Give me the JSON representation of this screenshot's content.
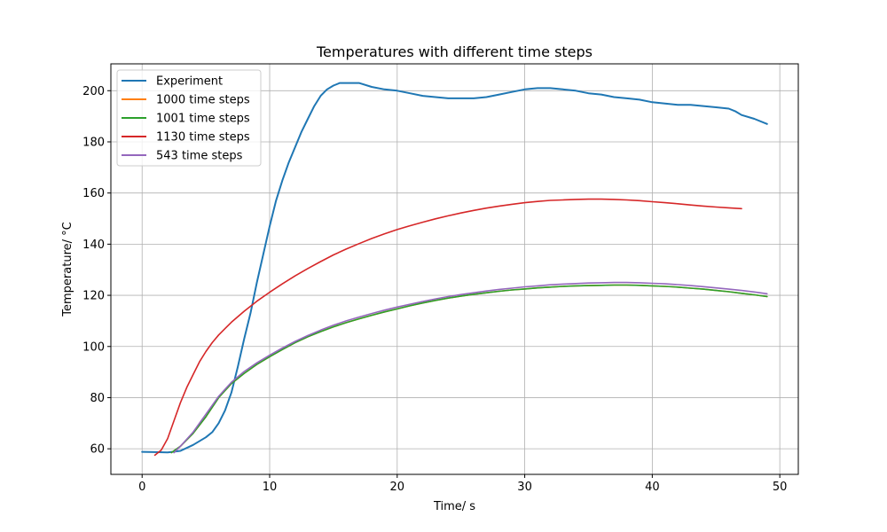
{
  "chart_data": {
    "type": "line",
    "title": "Temperatures with different time steps",
    "xlabel": "Time/ s",
    "ylabel": "Temperature/ °C",
    "xlim": [
      -2.45,
      51.45
    ],
    "ylim": [
      50,
      210.5
    ],
    "xticks": [
      0,
      10,
      20,
      30,
      40,
      50
    ],
    "yticks": [
      60,
      80,
      100,
      120,
      140,
      160,
      180,
      200
    ],
    "grid": true,
    "legend_position": "top-left",
    "series": [
      {
        "name": "Experiment",
        "color": "#1f77b4",
        "points": [
          [
            0,
            58.8
          ],
          [
            1,
            58.7
          ],
          [
            2,
            58.6
          ],
          [
            3,
            59.2
          ],
          [
            4,
            61.5
          ],
          [
            5,
            64.5
          ],
          [
            5.5,
            66.5
          ],
          [
            6,
            70
          ],
          [
            6.5,
            75
          ],
          [
            7,
            82
          ],
          [
            7.5,
            92
          ],
          [
            8,
            103
          ],
          [
            8.5,
            113
          ],
          [
            9,
            125
          ],
          [
            9.5,
            136
          ],
          [
            10,
            147
          ],
          [
            10.5,
            157
          ],
          [
            11,
            165
          ],
          [
            11.5,
            172
          ],
          [
            12,
            178
          ],
          [
            12.5,
            184
          ],
          [
            13,
            189
          ],
          [
            13.5,
            194
          ],
          [
            14,
            198
          ],
          [
            14.5,
            200.5
          ],
          [
            15,
            202
          ],
          [
            15.5,
            203
          ],
          [
            16,
            203
          ],
          [
            17,
            203
          ],
          [
            18,
            201.5
          ],
          [
            19,
            200.5
          ],
          [
            20,
            200
          ],
          [
            21,
            199
          ],
          [
            22,
            198
          ],
          [
            23,
            197.5
          ],
          [
            24,
            197
          ],
          [
            25,
            197
          ],
          [
            26,
            197
          ],
          [
            27,
            197.5
          ],
          [
            28,
            198.5
          ],
          [
            29,
            199.5
          ],
          [
            30,
            200.5
          ],
          [
            31,
            201
          ],
          [
            32,
            201
          ],
          [
            33,
            200.5
          ],
          [
            34,
            200
          ],
          [
            35,
            199
          ],
          [
            36,
            198.5
          ],
          [
            37,
            197.5
          ],
          [
            38,
            197
          ],
          [
            39,
            196.5
          ],
          [
            40,
            195.5
          ],
          [
            41,
            195
          ],
          [
            42,
            194.5
          ],
          [
            43,
            194.5
          ],
          [
            44,
            194
          ],
          [
            45,
            193.5
          ],
          [
            46,
            193
          ],
          [
            46.5,
            192
          ],
          [
            47,
            190.5
          ],
          [
            48,
            189
          ],
          [
            49,
            187
          ]
        ]
      },
      {
        "name": "1000 time steps",
        "color": "#ff7f0e",
        "points": [
          [
            2.3,
            58.5
          ],
          [
            3,
            61
          ],
          [
            4,
            66
          ],
          [
            5,
            72.5
          ],
          [
            6,
            80
          ],
          [
            7,
            85.5
          ],
          [
            8,
            89.5
          ],
          [
            9,
            93
          ],
          [
            10,
            96
          ],
          [
            11,
            98.8
          ],
          [
            12,
            101.5
          ],
          [
            13,
            103.8
          ],
          [
            14,
            105.8
          ],
          [
            15,
            107.7
          ],
          [
            16,
            109.3
          ],
          [
            17,
            110.8
          ],
          [
            18,
            112.2
          ],
          [
            19,
            113.5
          ],
          [
            20,
            114.7
          ],
          [
            21,
            115.9
          ],
          [
            22,
            117
          ],
          [
            23,
            118
          ],
          [
            24,
            118.9
          ],
          [
            25,
            119.7
          ],
          [
            26,
            120.4
          ],
          [
            27,
            121
          ],
          [
            28,
            121.6
          ],
          [
            29,
            122.1
          ],
          [
            30,
            122.5
          ],
          [
            31,
            122.9
          ],
          [
            32,
            123.2
          ],
          [
            33,
            123.5
          ],
          [
            34,
            123.7
          ],
          [
            35,
            123.8
          ],
          [
            36,
            123.9
          ],
          [
            37,
            124
          ],
          [
            38,
            124
          ],
          [
            39,
            123.9
          ],
          [
            40,
            123.7
          ],
          [
            41,
            123.5
          ],
          [
            42,
            123.2
          ],
          [
            43,
            122.8
          ],
          [
            44,
            122.4
          ],
          [
            45,
            121.9
          ],
          [
            46,
            121.4
          ],
          [
            47,
            120.8
          ],
          [
            48,
            120.2
          ],
          [
            49,
            119.5
          ]
        ]
      },
      {
        "name": "1001 time steps",
        "color": "#2ca02c",
        "points": [
          [
            2.3,
            58.5
          ],
          [
            3,
            61
          ],
          [
            4,
            66
          ],
          [
            5,
            72.5
          ],
          [
            6,
            80
          ],
          [
            7,
            85.5
          ],
          [
            8,
            89.5
          ],
          [
            9,
            93
          ],
          [
            10,
            96
          ],
          [
            11,
            98.8
          ],
          [
            12,
            101.5
          ],
          [
            13,
            103.8
          ],
          [
            14,
            105.8
          ],
          [
            15,
            107.7
          ],
          [
            16,
            109.3
          ],
          [
            17,
            110.8
          ],
          [
            18,
            112.2
          ],
          [
            19,
            113.5
          ],
          [
            20,
            114.7
          ],
          [
            21,
            115.9
          ],
          [
            22,
            117
          ],
          [
            23,
            118
          ],
          [
            24,
            118.9
          ],
          [
            25,
            119.7
          ],
          [
            26,
            120.4
          ],
          [
            27,
            121
          ],
          [
            28,
            121.6
          ],
          [
            29,
            122.1
          ],
          [
            30,
            122.5
          ],
          [
            31,
            122.9
          ],
          [
            32,
            123.2
          ],
          [
            33,
            123.5
          ],
          [
            34,
            123.7
          ],
          [
            35,
            123.8
          ],
          [
            36,
            123.9
          ],
          [
            37,
            124
          ],
          [
            38,
            124
          ],
          [
            39,
            123.9
          ],
          [
            40,
            123.7
          ],
          [
            41,
            123.5
          ],
          [
            42,
            123.2
          ],
          [
            43,
            122.8
          ],
          [
            44,
            122.4
          ],
          [
            45,
            121.9
          ],
          [
            46,
            121.4
          ],
          [
            47,
            120.8
          ],
          [
            48,
            120.2
          ],
          [
            49,
            119.5
          ]
        ]
      },
      {
        "name": "1130 time steps",
        "color": "#d62728",
        "points": [
          [
            1,
            57.5
          ],
          [
            1.5,
            59.5
          ],
          [
            2,
            64
          ],
          [
            2.5,
            71
          ],
          [
            3,
            78
          ],
          [
            3.5,
            84
          ],
          [
            4,
            89
          ],
          [
            4.5,
            94
          ],
          [
            5,
            98
          ],
          [
            5.5,
            101.5
          ],
          [
            6,
            104.5
          ],
          [
            7,
            109.5
          ],
          [
            8,
            113.8
          ],
          [
            9,
            117.7
          ],
          [
            10,
            121.2
          ],
          [
            11,
            124.5
          ],
          [
            12,
            127.6
          ],
          [
            13,
            130.5
          ],
          [
            14,
            133.2
          ],
          [
            15,
            135.8
          ],
          [
            16,
            138.1
          ],
          [
            17,
            140.2
          ],
          [
            18,
            142.2
          ],
          [
            19,
            144
          ],
          [
            20,
            145.7
          ],
          [
            21,
            147.2
          ],
          [
            22,
            148.6
          ],
          [
            23,
            149.9
          ],
          [
            24,
            151.1
          ],
          [
            25,
            152.2
          ],
          [
            26,
            153.2
          ],
          [
            27,
            154.1
          ],
          [
            28,
            154.9
          ],
          [
            29,
            155.6
          ],
          [
            30,
            156.2
          ],
          [
            31,
            156.7
          ],
          [
            32,
            157.1
          ],
          [
            33,
            157.3
          ],
          [
            34,
            157.5
          ],
          [
            35,
            157.6
          ],
          [
            36,
            157.6
          ],
          [
            37,
            157.5
          ],
          [
            38,
            157.3
          ],
          [
            39,
            157
          ],
          [
            40,
            156.6
          ],
          [
            41,
            156.2
          ],
          [
            42,
            155.8
          ],
          [
            43,
            155.3
          ],
          [
            44,
            154.9
          ],
          [
            45,
            154.5
          ],
          [
            46,
            154.2
          ],
          [
            47,
            153.9
          ]
        ]
      },
      {
        "name": "543 time steps",
        "color": "#9467bd",
        "points": [
          [
            2.5,
            58.5
          ],
          [
            3,
            61
          ],
          [
            4,
            66.5
          ],
          [
            5,
            73.5
          ],
          [
            6,
            80.5
          ],
          [
            7,
            86
          ],
          [
            8,
            90.2
          ],
          [
            9,
            93.6
          ],
          [
            10,
            96.6
          ],
          [
            11,
            99.4
          ],
          [
            12,
            102
          ],
          [
            13,
            104.3
          ],
          [
            14,
            106.4
          ],
          [
            15,
            108.3
          ],
          [
            16,
            110
          ],
          [
            17,
            111.5
          ],
          [
            18,
            112.9
          ],
          [
            19,
            114.2
          ],
          [
            20,
            115.4
          ],
          [
            21,
            116.5
          ],
          [
            22,
            117.6
          ],
          [
            23,
            118.6
          ],
          [
            24,
            119.5
          ],
          [
            25,
            120.3
          ],
          [
            26,
            121
          ],
          [
            27,
            121.7
          ],
          [
            28,
            122.3
          ],
          [
            29,
            122.8
          ],
          [
            30,
            123.3
          ],
          [
            31,
            123.7
          ],
          [
            32,
            124.1
          ],
          [
            33,
            124.4
          ],
          [
            34,
            124.6
          ],
          [
            35,
            124.8
          ],
          [
            36,
            124.9
          ],
          [
            37,
            125
          ],
          [
            38,
            125
          ],
          [
            39,
            124.9
          ],
          [
            40,
            124.7
          ],
          [
            41,
            124.5
          ],
          [
            42,
            124.2
          ],
          [
            43,
            123.8
          ],
          [
            44,
            123.4
          ],
          [
            45,
            122.9
          ],
          [
            46,
            122.4
          ],
          [
            47,
            121.9
          ],
          [
            48,
            121.3
          ],
          [
            49,
            120.6
          ]
        ]
      }
    ]
  }
}
